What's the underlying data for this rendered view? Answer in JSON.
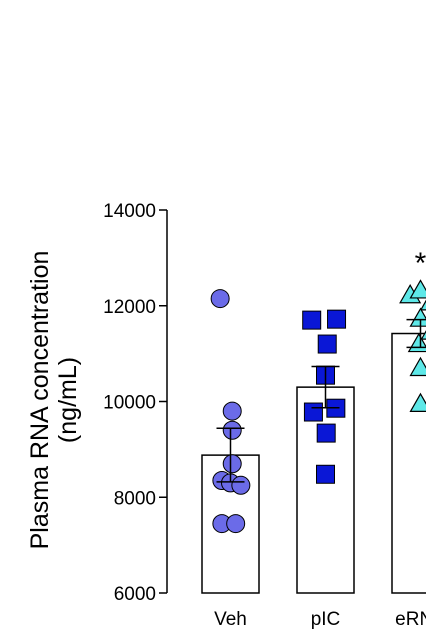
{
  "chart_data": {
    "type": "bar",
    "title": "",
    "xlabel": "",
    "ylabel_lines": [
      "Plasma RNA concentration",
      "(ng/mL)"
    ],
    "ylim": [
      6000,
      14000
    ],
    "yticks": [
      6000,
      8000,
      10000,
      12000,
      14000
    ],
    "ytick_labels": [
      "6000",
      "8000",
      "10000",
      "12000",
      "14000"
    ],
    "grid": false,
    "legend": "none",
    "categories": [
      "Veh",
      "pIC",
      "eRNA"
    ],
    "bars": [
      {
        "category": "Veh",
        "mean": 8880,
        "sem": 560,
        "marker": "circle",
        "color": "#6b6be8",
        "points": [
          [
            -0.3,
            12150
          ],
          [
            0.05,
            9800
          ],
          [
            0.05,
            9400
          ],
          [
            0.05,
            8700
          ],
          [
            -0.25,
            8350
          ],
          [
            0.0,
            8300
          ],
          [
            0.3,
            8250
          ],
          [
            -0.25,
            7450
          ],
          [
            0.15,
            7450
          ]
        ]
      },
      {
        "category": "pIC",
        "mean": 10300,
        "sem": 430,
        "marker": "square",
        "color": "#0a17d6",
        "points": [
          [
            -0.4,
            11700
          ],
          [
            0.32,
            11720
          ],
          [
            0.05,
            11200
          ],
          [
            0.0,
            10550
          ],
          [
            -0.35,
            9780
          ],
          [
            0.3,
            9860
          ],
          [
            0.02,
            9340
          ],
          [
            0.0,
            8480
          ]
        ]
      },
      {
        "category": "eRNA",
        "mean": 11420,
        "sem": 290,
        "marker": "triangle",
        "color": "#5ee8e8",
        "points": [
          [
            -0.3,
            12220
          ],
          [
            0.0,
            12320
          ],
          [
            0.3,
            12070
          ],
          [
            0.32,
            11460
          ],
          [
            0.0,
            11730
          ],
          [
            -0.05,
            11200
          ],
          [
            0.0,
            10700
          ],
          [
            0.0,
            9950
          ]
        ]
      }
    ],
    "annotations": [
      {
        "category": "eRNA",
        "text": "*",
        "y": 13060
      }
    ]
  }
}
